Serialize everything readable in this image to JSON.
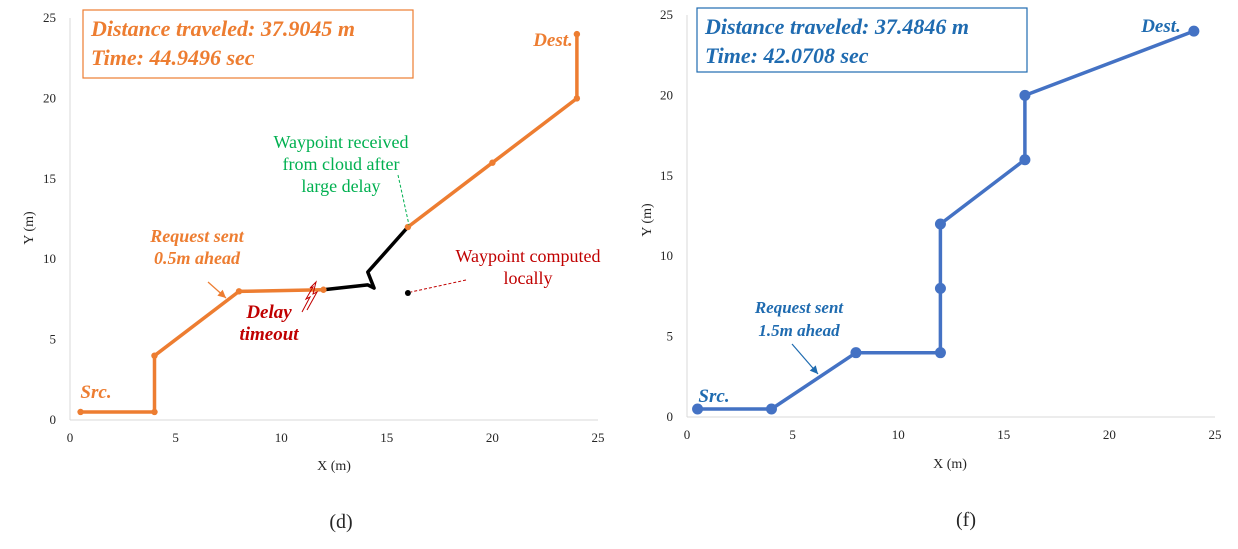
{
  "chart_data": [
    {
      "type": "line",
      "caption": "(d)",
      "xlabel": "X (m)",
      "ylabel": "Y (m)",
      "xlim": [
        0,
        25
      ],
      "ylim": [
        0,
        25
      ],
      "xticks": [
        0,
        5,
        10,
        15,
        20,
        25
      ],
      "yticks": [
        0,
        5,
        10,
        15,
        20,
        25
      ],
      "grid": false,
      "info_box": {
        "line1": "Distance traveled: 37.9045 m",
        "line2": "Time: 44.9496 sec",
        "color": "#ED7D31"
      },
      "series": [
        {
          "color": "#ED7D31",
          "x": [
            0.5,
            4,
            4,
            8,
            12
          ],
          "y": [
            0.5,
            0.5,
            4,
            8,
            8.1
          ],
          "markers": true
        },
        {
          "color": "#000000",
          "x": [
            12,
            12.7,
            14.1,
            14.4,
            14.1,
            16
          ],
          "y": [
            8.1,
            8.2,
            8.4,
            8.2,
            9.2,
            12
          ],
          "markers": false
        },
        {
          "color": "#ED7D31",
          "x": [
            16,
            20,
            24,
            24
          ],
          "y": [
            12,
            16,
            20,
            24
          ],
          "markers": true
        }
      ],
      "extra_points": [
        {
          "x": 16,
          "y": 7.9,
          "color": "#000000"
        }
      ],
      "annotations": [
        {
          "lines": [
            "Dest."
          ],
          "color": "#ED7D31",
          "italic": true
        },
        {
          "lines": [
            "Src."
          ],
          "color": "#ED7D31",
          "italic": true
        },
        {
          "lines": [
            "Request sent",
            "0.5m ahead"
          ],
          "color": "#ED7D31",
          "italic": true
        },
        {
          "lines": [
            "Delay",
            "timeout"
          ],
          "color": "#C00000",
          "italic": true
        },
        {
          "lines": [
            "Waypoint received",
            "from cloud after",
            "large delay"
          ],
          "color": "#00B050",
          "italic": false
        },
        {
          "lines": [
            "Waypoint computed",
            "locally"
          ],
          "color": "#C00000",
          "italic": false
        }
      ]
    },
    {
      "type": "line",
      "caption": "(f)",
      "xlabel": "X (m)",
      "ylabel": "Y (m)",
      "xlim": [
        0,
        25
      ],
      "ylim": [
        0,
        25
      ],
      "xticks": [
        0,
        5,
        10,
        15,
        20,
        25
      ],
      "yticks": [
        0,
        5,
        10,
        15,
        20,
        25
      ],
      "grid": false,
      "info_box": {
        "line1": "Distance traveled: 37.4846 m",
        "line2": "Time: 42.0708 sec",
        "color": "#1F6BB0"
      },
      "series": [
        {
          "color": "#4472C4",
          "x": [
            0.5,
            4,
            8,
            12,
            12,
            12,
            16,
            16,
            24
          ],
          "y": [
            0.5,
            0.5,
            4,
            4,
            8,
            12,
            16,
            20,
            24
          ],
          "markers": true
        }
      ],
      "extra_points": [],
      "annotations": [
        {
          "lines": [
            "Dest."
          ],
          "color": "#1F6BB0",
          "italic": true
        },
        {
          "lines": [
            "Src."
          ],
          "color": "#1F6BB0",
          "italic": true
        },
        {
          "lines": [
            "Request sent",
            "1.5m ahead"
          ],
          "color": "#1F6BB0",
          "italic": true
        }
      ]
    }
  ]
}
